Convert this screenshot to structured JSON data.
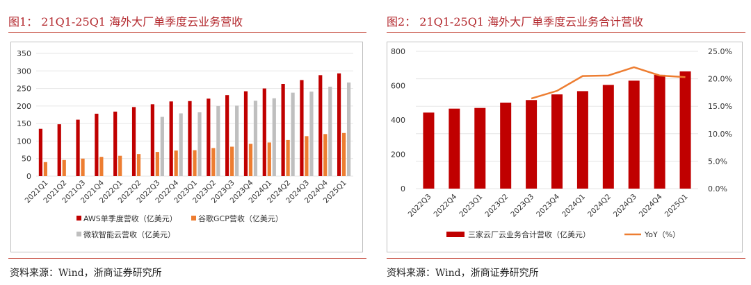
{
  "left_panel": {
    "title": "图1：  21Q1-25Q1 海外大厂单季度云业务营收",
    "source": "资料来源：Wind，浙商证券研究所"
  },
  "right_panel": {
    "title": "图2：  21Q1-25Q1 海外大厂单季度云业务合计营收",
    "source": "资料来源：Wind，浙商证券研究所"
  },
  "chart_data": [
    {
      "type": "bar",
      "title": "",
      "categories": [
        "2021Q1",
        "2021Q2",
        "2021Q3",
        "2021Q4",
        "2022Q1",
        "2022Q2",
        "2022Q3",
        "2022Q4",
        "2023Q1",
        "2023Q2",
        "2023Q3",
        "2023Q4",
        "2024Q1",
        "2024Q2",
        "2024Q3",
        "2024Q4",
        "2025Q1"
      ],
      "ylim": [
        0,
        350
      ],
      "yticks": [
        "0",
        "50",
        "100",
        "150",
        "200",
        "250",
        "300",
        "350"
      ],
      "grid": true,
      "legend_position": "bottom",
      "series": [
        {
          "name": "AWS单季度营收（亿美元）",
          "color": "#c00000",
          "values": [
            135,
            148,
            161,
            178,
            184,
            197,
            205,
            213,
            214,
            221,
            231,
            242,
            250,
            263,
            274,
            288,
            293
          ]
        },
        {
          "name": "谷歌GCP营收（亿美元）",
          "color": "#ed7d31",
          "values": [
            40,
            46,
            50,
            55,
            58,
            63,
            69,
            73,
            74,
            80,
            84,
            92,
            96,
            103,
            114,
            120,
            123
          ]
        },
        {
          "name": "微软智能云营收（亿美元）",
          "color": "#bfbfbf",
          "values": [
            null,
            null,
            null,
            null,
            null,
            null,
            169,
            179,
            182,
            200,
            201,
            215,
            222,
            238,
            241,
            255,
            267
          ]
        }
      ]
    },
    {
      "type": "bar",
      "title": "",
      "categories": [
        "2022Q3",
        "2022Q4",
        "2023Q1",
        "2023Q2",
        "2023Q3",
        "2023Q4",
        "2024Q1",
        "2024Q2",
        "2024Q3",
        "2024Q4",
        "2025Q1"
      ],
      "ylim": [
        0,
        800
      ],
      "yticks": [
        "0",
        "200",
        "400",
        "600",
        "800"
      ],
      "y2lim": [
        0,
        25
      ],
      "y2ticks": [
        "0.0%",
        "5.0%",
        "10.0%",
        "15.0%",
        "20.0%",
        "25.0%"
      ],
      "grid": true,
      "legend_position": "bottom",
      "series": [
        {
          "name": "三家云厂云业务合计营收（亿美元）",
          "type": "bar",
          "color": "#c00000",
          "values": [
            443,
            466,
            470,
            501,
            516,
            549,
            568,
            604,
            629,
            663,
            683
          ]
        },
        {
          "name": "YoY（%）",
          "type": "line",
          "axis": "right",
          "color": "#ed7d31",
          "values": [
            null,
            null,
            null,
            null,
            16.4,
            17.8,
            20.5,
            20.6,
            22.1,
            20.6,
            20.3
          ]
        }
      ]
    }
  ]
}
